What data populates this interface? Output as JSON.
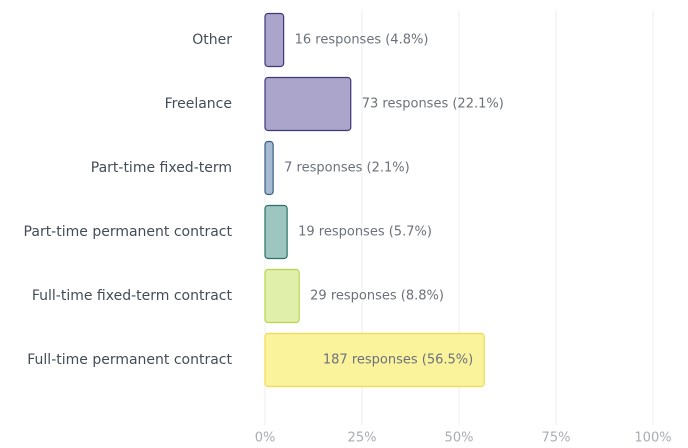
{
  "chart_data": {
    "type": "hbar",
    "categories": [
      "Other",
      "Freelance",
      "Part-time fixed-term",
      "Part-time permanent contract",
      "Full-time fixed-term contract",
      "Full-time permanent contract"
    ],
    "values": [
      4.8,
      22.1,
      2.1,
      5.7,
      8.8,
      56.5
    ],
    "value_labels": [
      "16 responses (4.8%)",
      "73 responses (22.1%)",
      "7 responses (2.1%)",
      "19 responses (5.7%)",
      "29 responses (8.8%)",
      "187 responses (56.5%)"
    ],
    "colors": [
      "#aba5cb",
      "#aba5cb",
      "#a5bbd3",
      "#9cc6bf",
      "#e0efa9",
      "#fbf29c"
    ],
    "edge_colors": [
      "#3d3878",
      "#3d3878",
      "#3c5c7c",
      "#2b6f66",
      "#b7d64c",
      "#efdb53"
    ],
    "xlim": [
      0,
      100
    ],
    "xticks": [
      {
        "value": 0,
        "label": "0%"
      },
      {
        "value": 25,
        "label": "25%"
      },
      {
        "value": 50,
        "label": "50%"
      },
      {
        "value": 75,
        "label": "75%"
      },
      {
        "value": 100,
        "label": "100%"
      }
    ],
    "grid": true
  }
}
